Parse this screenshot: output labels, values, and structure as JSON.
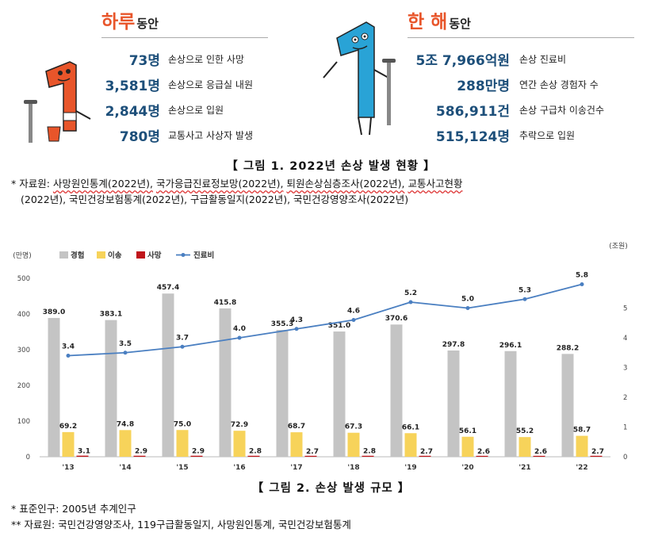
{
  "colors": {
    "orange": "#e8552a",
    "navy": "#1d4f7a",
    "gray_bar": "#c4c4c4",
    "yellow_bar": "#f7d35a",
    "red_bar": "#c0161b",
    "line": "#4a7fc1"
  },
  "panel_day": {
    "title": "하루",
    "suffix": "동안",
    "stats": [
      {
        "value": "73명",
        "desc": "손상으로 인한 사망"
      },
      {
        "value": "3,581명",
        "desc": "손상으로 응급실 내원"
      },
      {
        "value": "2,844명",
        "desc": "손상으로 입원"
      },
      {
        "value": "780명",
        "desc": "교통사고 사상자 발생"
      }
    ]
  },
  "panel_year": {
    "title": "한 해",
    "suffix": "동안",
    "stats": [
      {
        "value": "5조 7,966억원",
        "desc": "손상 진료비"
      },
      {
        "value": "288만명",
        "desc": "연간 손상 경험자 수"
      },
      {
        "value": "586,911건",
        "desc": "손상 구급차 이송건수"
      },
      {
        "value": "515,124명",
        "desc": "추락으로 입원"
      }
    ]
  },
  "figure1": {
    "caption": "【 그림 1. 2022년 손상 발생 현황 】",
    "note_mark": "*",
    "note_prefix": " 자료원: ",
    "sources": [
      "사망원인통계(2022년),",
      "국가응급진료정보망(2022년),",
      "퇴원손상심층조사(2022년),",
      "교통사고현황"
    ],
    "note_line2": "(2022년), 국민건강보험통계(2022년), 구급활동일지(2022년), 국민건강영양조사(2022년)"
  },
  "figure2": {
    "caption": "【 그림 2. 손상 발생 규모 】",
    "note1": "* 표준인구: 2005년 추계인구",
    "note2": "** 자료원: 국민건강영양조사, 119구급활동일지, 사망원인통계, 국민건강보험통계"
  },
  "chart_data": {
    "type": "bar",
    "left_unit": "(만명)",
    "right_unit": "(조원)",
    "categories": [
      "'13",
      "'14",
      "'15",
      "'16",
      "'17",
      "'18",
      "'19",
      "'20",
      "'21",
      "'22"
    ],
    "series": [
      {
        "name": "경험",
        "type": "bar",
        "axis": "left",
        "values": [
          389.0,
          383.1,
          457.4,
          415.8,
          355.3,
          351.0,
          370.6,
          297.8,
          296.1,
          288.2
        ]
      },
      {
        "name": "이송",
        "type": "bar",
        "axis": "left",
        "values": [
          69.2,
          74.8,
          75.0,
          72.9,
          68.7,
          67.3,
          66.1,
          56.1,
          55.2,
          58.7
        ]
      },
      {
        "name": "사망",
        "type": "bar",
        "axis": "left",
        "values": [
          3.1,
          2.9,
          2.9,
          2.8,
          2.7,
          2.8,
          2.7,
          2.6,
          2.6,
          2.7
        ]
      },
      {
        "name": "진료비",
        "type": "line",
        "axis": "right",
        "values": [
          3.4,
          3.5,
          3.7,
          4.0,
          4.3,
          4.6,
          5.2,
          5.0,
          5.3,
          5.8
        ]
      }
    ],
    "ylim_left": [
      0,
      500
    ],
    "yticks_left": [
      0,
      100,
      200,
      300,
      400,
      500
    ],
    "ylim_right": [
      0,
      6
    ],
    "yticks_right": [
      0,
      1,
      2,
      3,
      4,
      5
    ],
    "legend_position": "top-left"
  }
}
